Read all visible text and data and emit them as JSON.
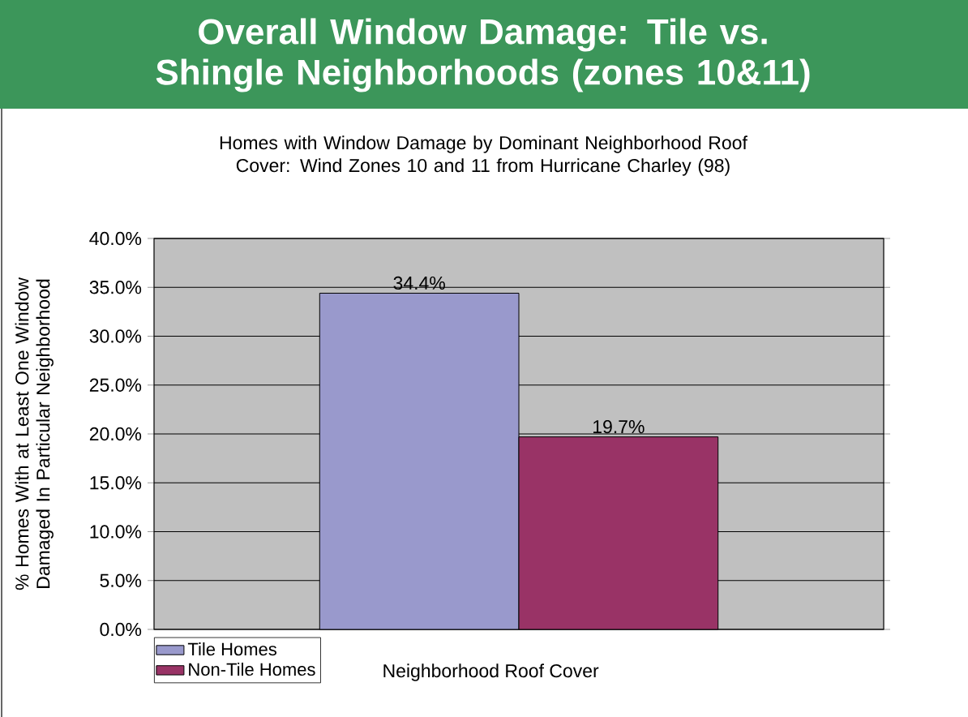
{
  "chart_data": {
    "type": "bar",
    "title": "Overall Window Damage: Tile vs. Shingle Neighborhoods (zones 10&11)",
    "subtitle": "Homes with Window Damage by Dominant Neighborhood Roof Cover: Wind Zones 10 and 11 from Hurricane Charley (98)",
    "xlabel": "Neighborhood Roof Cover",
    "ylabel": "% Homes With at Least One Window Damaged In Particular Neighborhood",
    "categories": [
      null
    ],
    "series": [
      {
        "name": "Tile Homes",
        "color": "#9999cc",
        "values": [
          34.4
        ],
        "value_labels": [
          "34.4%"
        ]
      },
      {
        "name": "Non-Tile Homes",
        "color": "#993366",
        "values": [
          19.7
        ],
        "value_labels": [
          "19.7%"
        ]
      }
    ],
    "ylim": [
      0,
      40
    ],
    "yticks": [
      {
        "value": 0,
        "label": "0.0%"
      },
      {
        "value": 5,
        "label": "5.0%"
      },
      {
        "value": 10,
        "label": "10.0%"
      },
      {
        "value": 15,
        "label": "15.0%"
      },
      {
        "value": 20,
        "label": "20.0%"
      },
      {
        "value": 25,
        "label": "25.0%"
      },
      {
        "value": 30,
        "label": "30.0%"
      },
      {
        "value": 35,
        "label": "35.0%"
      },
      {
        "value": 40,
        "label": "40.0%"
      }
    ],
    "grid": "y",
    "legend": "bottom left"
  }
}
